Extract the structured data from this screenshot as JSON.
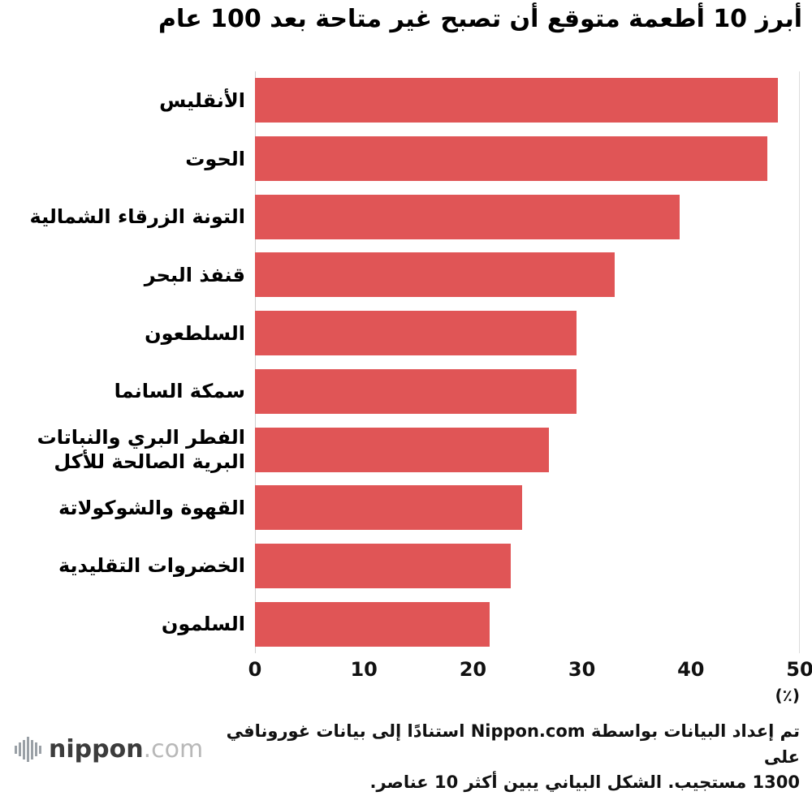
{
  "title": "أبرز 10 أطعمة متوقع أن تصبح غير متاحة بعد 100 عام",
  "chart_data": {
    "type": "bar",
    "orientation": "horizontal",
    "title": "أبرز 10 أطعمة متوقع أن تصبح غير متاحة بعد 100 عام",
    "categories": [
      "الأنقليس",
      "الحوت",
      "التونة الزرقاء الشمالية",
      "قنفذ البحر",
      "السلطعون",
      "سمكة السانما",
      "الفطر البري والنباتات البرية الصالحة للأكل",
      "القهوة والشوكولاتة",
      "الخضروات التقليدية",
      "السلمون"
    ],
    "values": [
      48,
      47,
      39,
      33,
      29.5,
      29.5,
      27,
      24.5,
      23.5,
      21.5
    ],
    "xlim": [
      0,
      50
    ],
    "xticks": [
      0,
      10,
      20,
      30,
      40,
      50
    ],
    "unit_label": "(٪)",
    "bar_color": "#e05556",
    "grid": "baseline-and-right-edge-only",
    "legend": "none"
  },
  "footer": {
    "note_line1": "تم إعداد البيانات بواسطة Nippon.com استنادًا إلى بيانات غورونافي على",
    "note_line2": "1300 مستجيب. الشكل البياني يبين أكثر 10 عناصر.",
    "logo_text": "nippon",
    "logo_suffix": ".com"
  }
}
